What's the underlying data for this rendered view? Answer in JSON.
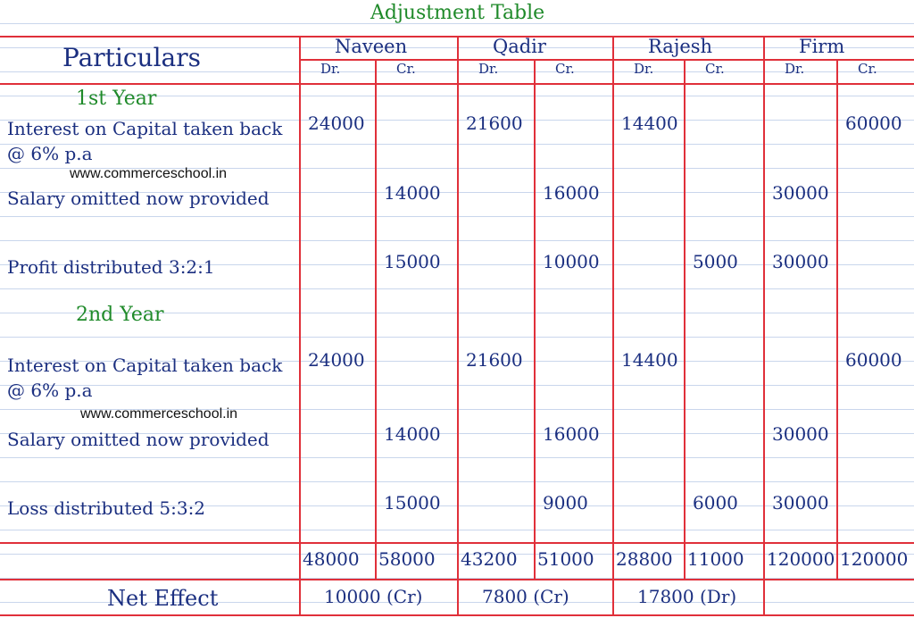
{
  "title": "Adjustment Table",
  "header": {
    "particulars": "Particulars",
    "columns": [
      "Naveen",
      "Qadir",
      "Rajesh",
      "Firm"
    ],
    "sub": [
      "Dr.",
      "Cr."
    ]
  },
  "sections": [
    {
      "heading": "1st Year",
      "rows": [
        {
          "particulars": "Interest on Capital taken back @ 6% p.a",
          "cells": [
            24000,
            null,
            21600,
            null,
            14400,
            null,
            null,
            60000
          ]
        },
        {
          "particulars": "Salary omitted now provided",
          "cells": [
            null,
            14000,
            null,
            16000,
            null,
            null,
            30000,
            null
          ]
        },
        {
          "particulars": "Profit distributed 3:2:1",
          "cells": [
            null,
            15000,
            null,
            10000,
            null,
            5000,
            30000,
            null
          ]
        }
      ]
    },
    {
      "heading": "2nd Year",
      "rows": [
        {
          "particulars": "Interest on Capital taken back @ 6% p.a",
          "cells": [
            24000,
            null,
            21600,
            null,
            14400,
            null,
            null,
            60000
          ]
        },
        {
          "particulars": "Salary omitted now provided",
          "cells": [
            null,
            14000,
            null,
            16000,
            null,
            null,
            30000,
            null
          ]
        },
        {
          "particulars": "Loss distributed 5:3:2",
          "cells": [
            null,
            15000,
            null,
            9000,
            null,
            6000,
            30000,
            null
          ]
        }
      ]
    }
  ],
  "watermarks": [
    "www.commerceschool.in",
    "www.commerceschool.in"
  ],
  "totals": [
    48000,
    58000,
    43200,
    51000,
    28800,
    11000,
    120000,
    120000
  ],
  "net_effect": {
    "label": "Net Effect",
    "values": [
      "10000 (Cr)",
      "7800 (Cr)",
      "17800 (Dr)"
    ]
  }
}
